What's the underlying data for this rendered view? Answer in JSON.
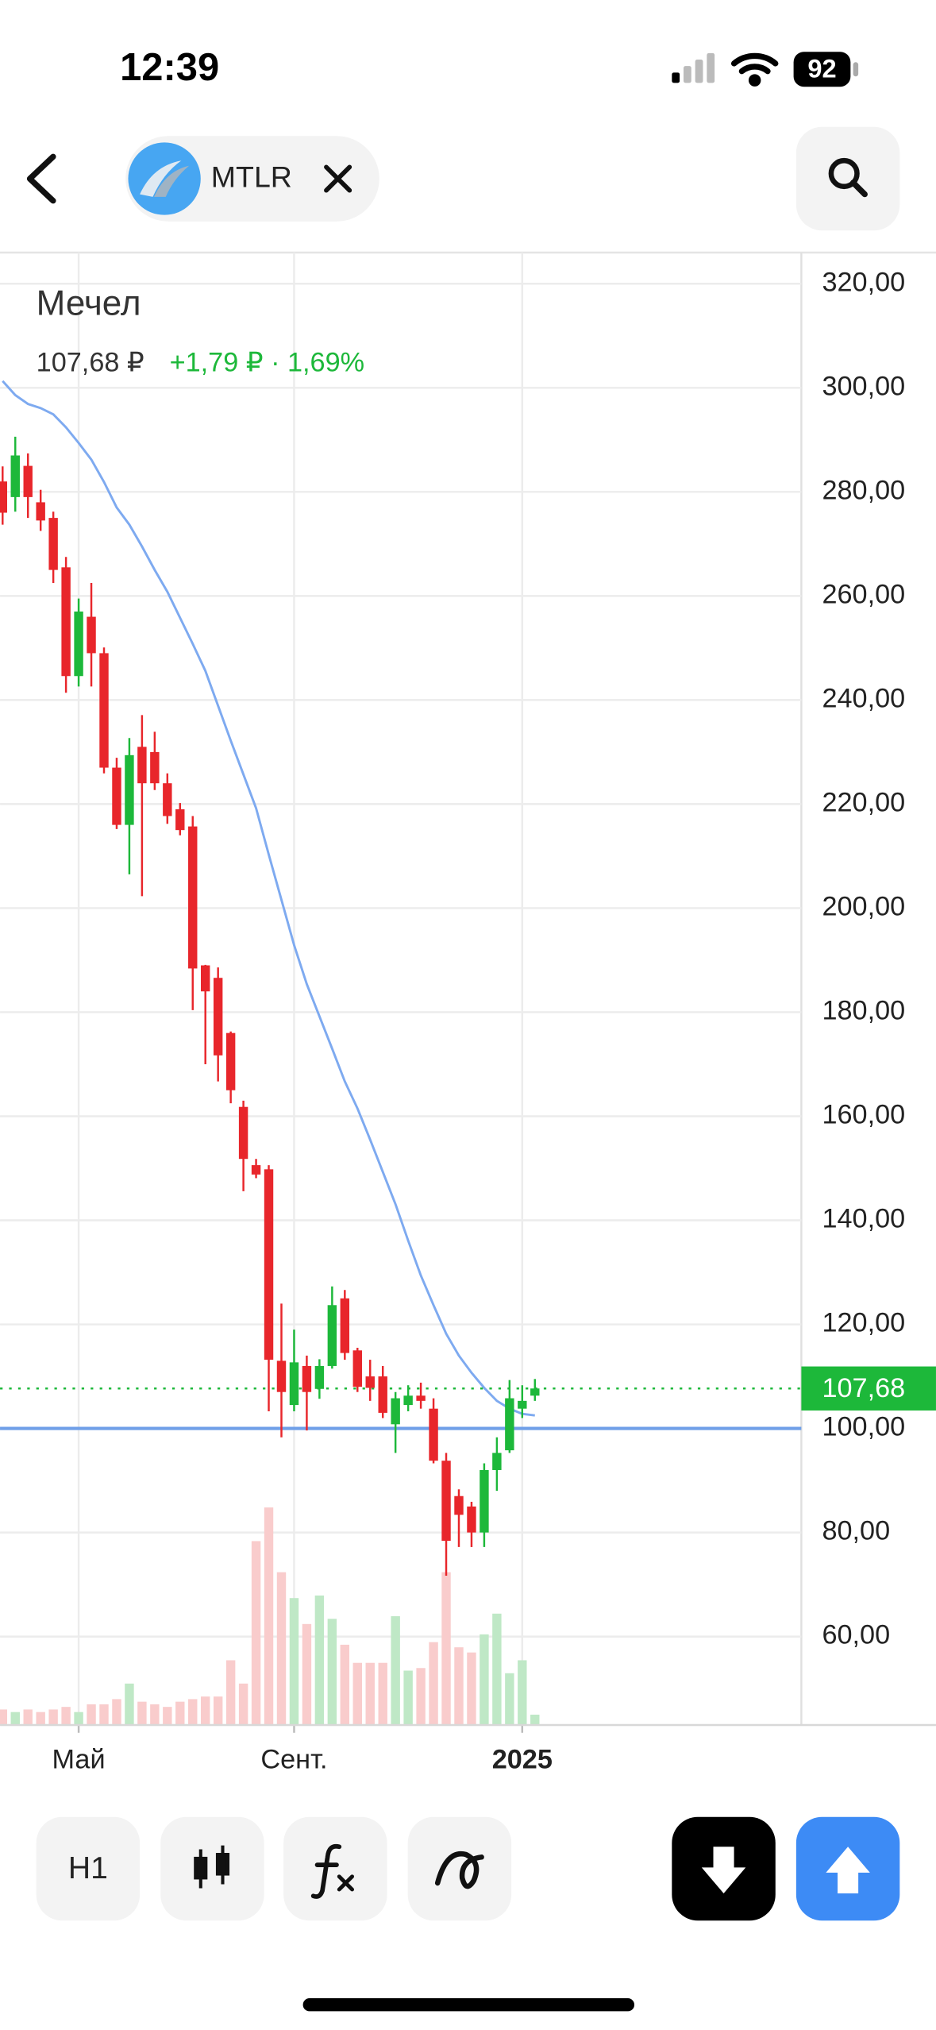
{
  "ui": {
    "status_time": "12:39",
    "battery": "92",
    "ticker": "MTLR",
    "company": "Мечел",
    "price": "107,68 ₽",
    "change": "+1,79 ₽ · 1,69%",
    "interval": "H1"
  },
  "chart_data": {
    "type": "candlestick",
    "up_color": "#1db83a",
    "down_color": "#e8262b",
    "up_volume_color": "#bfe8c6",
    "down_volume_color": "#f9cccc",
    "categories": [
      null,
      null,
      null,
      null,
      null,
      null,
      "Май",
      null,
      null,
      null,
      null,
      null,
      null,
      null,
      null,
      null,
      null,
      null,
      null,
      null,
      null,
      null,
      null,
      "Сент.",
      null,
      null,
      null,
      null,
      null,
      null,
      null,
      null,
      null,
      null,
      null,
      null,
      null,
      null,
      null,
      null,
      null,
      "2025",
      null
    ],
    "open": [
      282,
      279,
      285,
      278,
      275,
      265.5,
      244.6,
      256,
      249,
      227,
      216,
      231,
      230,
      224,
      219,
      215.7,
      189,
      186.6,
      176,
      161.8,
      150.6,
      149.8,
      113,
      104.5,
      112,
      107.6,
      112,
      125,
      115,
      110,
      110,
      100.8,
      104.5,
      106.3,
      103.8,
      93.8,
      87,
      85,
      80,
      92,
      95.8,
      103.8,
      106.3
    ],
    "high": [
      284.9,
      290.6,
      287.4,
      280.4,
      276.2,
      267.5,
      259.5,
      262.5,
      250.1,
      228.9,
      232.7,
      237.1,
      233.9,
      225.9,
      220.2,
      217.7,
      189.1,
      188.6,
      176.3,
      163,
      151.8,
      150.6,
      124,
      119,
      114,
      113.3,
      127.3,
      126.6,
      115.5,
      113.2,
      112,
      107,
      108.3,
      108.8,
      105.8,
      95.3,
      88.3,
      85.9,
      93.3,
      98.3,
      109.3,
      108.3,
      109.5
    ],
    "low": [
      273.7,
      276.2,
      275,
      272.5,
      262.5,
      241.4,
      242.6,
      242.6,
      225.9,
      215.2,
      206.5,
      202.3,
      222.7,
      216.2,
      214,
      180.4,
      170,
      166.7,
      162.5,
      145.6,
      148.1,
      103.3,
      98.3,
      103.3,
      99.6,
      105.7,
      111.5,
      113.2,
      107,
      105.3,
      102,
      95.3,
      103.3,
      103.8,
      93.3,
      71.7,
      77.2,
      77.2,
      77.2,
      88,
      95.3,
      102,
      105.3
    ],
    "close": [
      276,
      287,
      279,
      274.5,
      265,
      244.6,
      257,
      249,
      227,
      216,
      229.4,
      224,
      224,
      217.7,
      215,
      188.4,
      184,
      171.7,
      165,
      151.8,
      148.8,
      113.2,
      107,
      112.7,
      107,
      112,
      123.7,
      114.5,
      108,
      107.8,
      103,
      105.8,
      106.3,
      105.3,
      93.8,
      78.4,
      83.4,
      80,
      92,
      95.3,
      105.8,
      105.3,
      107.68
    ],
    "volume": [
      12,
      10,
      12,
      10,
      12,
      14,
      10,
      16,
      16,
      20,
      32,
      18,
      16,
      14,
      18,
      20,
      22,
      22,
      50,
      32,
      142,
      168,
      118,
      98,
      78,
      100,
      82,
      62,
      48,
      48,
      48,
      84,
      42,
      44,
      64,
      118,
      60,
      56,
      70,
      86,
      40,
      50,
      8
    ],
    "moving_average": {
      "color": "#7eaaf0",
      "values": [
        301.3,
        298.6,
        296.9,
        296.1,
        294.9,
        292.4,
        289.4,
        286.2,
        281.9,
        277,
        273.7,
        269.5,
        265,
        260.8,
        255.8,
        250.8,
        245.6,
        238.9,
        232.2,
        225.7,
        219.2,
        210.3,
        201.6,
        192.9,
        185.4,
        179.2,
        173,
        166.7,
        161.5,
        155.5,
        149.3,
        143.1,
        136.1,
        129.4,
        123.7,
        118.2,
        114,
        110.7,
        107.8,
        105.3,
        103.8,
        102.8,
        102.5
      ]
    },
    "hlines": [
      {
        "value": 100,
        "color": "#6f9fe8"
      }
    ],
    "last_price": {
      "value": 107.68,
      "label": "107,68",
      "color": "#1db83a"
    },
    "ylim": [
      43,
      326
    ],
    "yticks": [
      {
        "value": 60,
        "label": "60,00"
      },
      {
        "value": 80,
        "label": "80,00"
      },
      {
        "value": 100,
        "label": "100,00"
      },
      {
        "value": 120,
        "label": "120,00"
      },
      {
        "value": 140,
        "label": "140,00"
      },
      {
        "value": 160,
        "label": "160,00"
      },
      {
        "value": 180,
        "label": "180,00"
      },
      {
        "value": 200,
        "label": "200,00"
      },
      {
        "value": 220,
        "label": "220,00"
      },
      {
        "value": 240,
        "label": "240,00"
      },
      {
        "value": 260,
        "label": "260,00"
      },
      {
        "value": 280,
        "label": "280,00"
      },
      {
        "value": 300,
        "label": "300,00"
      },
      {
        "value": 320,
        "label": "320,00"
      }
    ],
    "grid": true
  }
}
